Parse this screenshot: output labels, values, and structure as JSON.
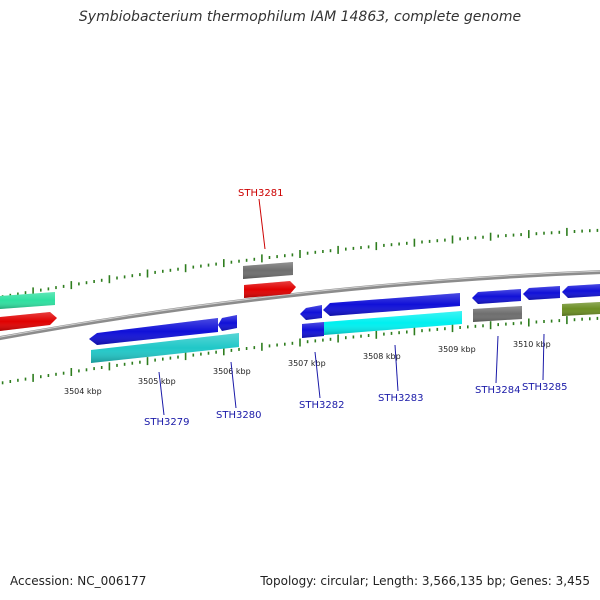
{
  "title": "Symbiobacterium thermophilum IAM 14863, complete genome",
  "footer": {
    "accession": "Accession: NC_006177",
    "summary": "Topology: circular; Length: 3,566,135 bp; Genes: 3,455"
  },
  "colors": {
    "backbone": "#8c8c8c",
    "tick": "#2e7d1e",
    "highlight_label": "#cc0000",
    "label": "#1a1aa8"
  },
  "ticks": [
    "3504 kbp",
    "3505 kbp",
    "3506 kbp",
    "3507 kbp",
    "3508 kbp",
    "3509 kbp",
    "3510 kbp"
  ],
  "gene_labels": [
    "STH3279",
    "STH3280",
    "STH3281",
    "STH3282",
    "STH3283",
    "STH3284",
    "STH3285"
  ]
}
